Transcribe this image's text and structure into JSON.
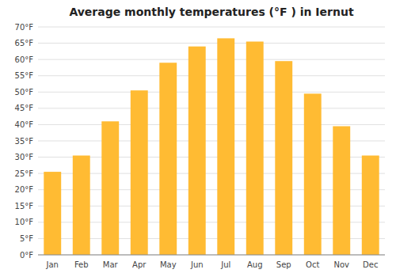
{
  "chart_data": {
    "type": "bar",
    "title": "Average monthly temperatures (°F ) in Iernut",
    "categories": [
      "Jan",
      "Feb",
      "Mar",
      "Apr",
      "May",
      "Jun",
      "Jul",
      "Aug",
      "Sep",
      "Oct",
      "Nov",
      "Dec"
    ],
    "values": [
      25.5,
      30.5,
      41.0,
      50.5,
      59.0,
      64.0,
      66.5,
      65.5,
      59.5,
      49.5,
      39.5,
      30.5
    ],
    "color": "#FFBB33",
    "ylim": [
      0,
      70
    ],
    "yticks": [
      {
        "value": 0,
        "label": "0°F"
      },
      {
        "value": 5,
        "label": "5°F"
      },
      {
        "value": 10,
        "label": "10°F"
      },
      {
        "value": 15,
        "label": "15°F"
      },
      {
        "value": 20,
        "label": "20°F"
      },
      {
        "value": 25,
        "label": "25°F"
      },
      {
        "value": 30,
        "label": "30°F"
      },
      {
        "value": 35,
        "label": "35°F"
      },
      {
        "value": 40,
        "label": "40°F"
      },
      {
        "value": 45,
        "label": "45°F"
      },
      {
        "value": 50,
        "label": "50°F"
      },
      {
        "value": 55,
        "label": "55°F"
      },
      {
        "value": 60,
        "label": "60°F"
      },
      {
        "value": 65,
        "label": "65°F"
      },
      {
        "value": 70,
        "label": "70°F"
      }
    ],
    "grid": true
  }
}
